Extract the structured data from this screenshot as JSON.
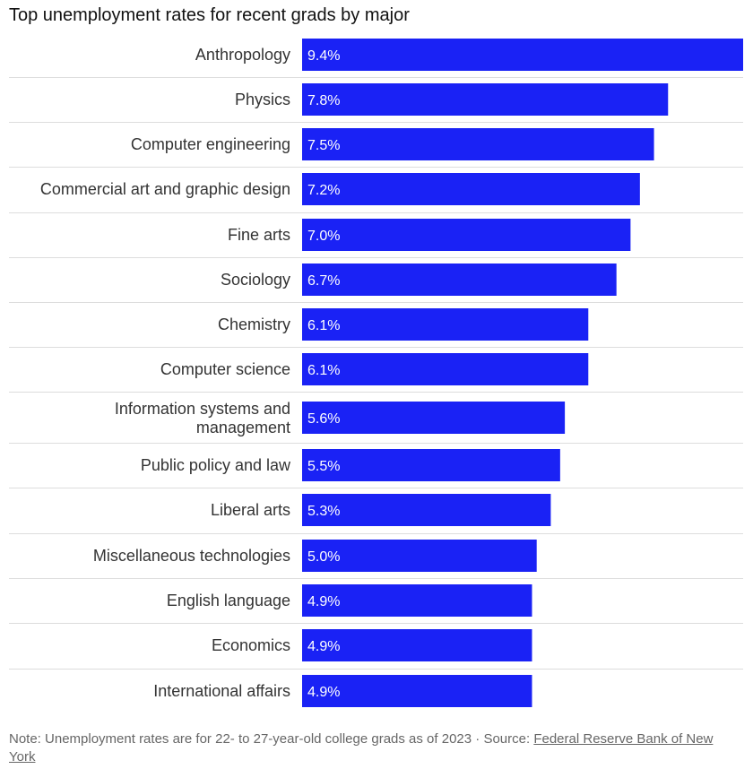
{
  "chart_data": {
    "type": "bar",
    "orientation": "horizontal",
    "title": "Top unemployment rates for recent grads by major",
    "categories": [
      "Anthropology",
      "Physics",
      "Computer engineering",
      "Commercial art and graphic design",
      "Fine arts",
      "Sociology",
      "Chemistry",
      "Computer science",
      "Information systems and management",
      "Public policy and law",
      "Liberal arts",
      "Miscellaneous technologies",
      "English language",
      "Economics",
      "International affairs"
    ],
    "values": [
      9.4,
      7.8,
      7.5,
      7.2,
      7.0,
      6.7,
      6.1,
      6.1,
      5.6,
      5.5,
      5.3,
      5.0,
      4.9,
      4.9,
      4.9
    ],
    "value_labels": [
      "9.4%",
      "7.8%",
      "7.5%",
      "7.2%",
      "7.0%",
      "6.7%",
      "6.1%",
      "6.1%",
      "5.6%",
      "5.5%",
      "5.3%",
      "5.0%",
      "4.9%",
      "4.9%",
      "4.9%"
    ],
    "xlim": [
      0,
      9.4
    ],
    "bar_color": "#1a22f5",
    "separator_color": "#dddddd",
    "grid": false,
    "legend": "none"
  },
  "footnote": {
    "note": "Note: Unemployment rates are for 22- to 27-year-old college grads as of 2023",
    "separator": " · ",
    "source_prefix": "Source: ",
    "source_link": "Federal Reserve Bank of New York"
  }
}
